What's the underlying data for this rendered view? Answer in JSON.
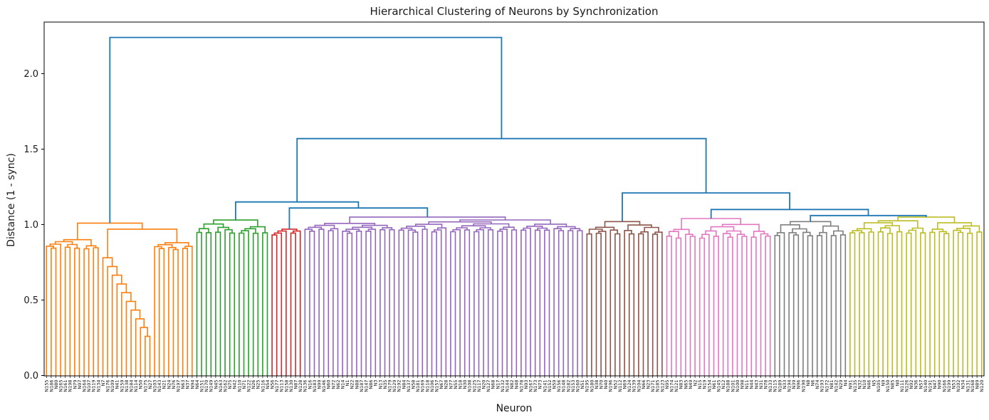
{
  "chart_data": {
    "type": "dendrogram",
    "title": "Hierarchical Clustering of Neurons by Synchronization",
    "xlabel": "Neuron",
    "ylabel": "Distance (1 - sync)",
    "yticks": [
      0.0,
      0.5,
      1.0,
      1.5,
      2.0
    ],
    "ylim": [
      0.0,
      2.34
    ],
    "grid": false,
    "legend": false,
    "n_leaves": 200,
    "leaf_label_prefix": "N",
    "leaf_id_range": [
      0,
      199
    ],
    "leaf_label_rotation": 90,
    "link_color_above_threshold": "#1f77b4",
    "axis_color": "#000000",
    "background": "#ffffff",
    "clusters": [
      {
        "name": "orange",
        "color": "#ff7f0e",
        "leaf_count": 32,
        "top_height": 1.01,
        "min_height": 0.26,
        "shape": "cascade",
        "cascade": {
          "left_block": {
            "leaves": 12,
            "top": 0.9,
            "min": 0.79
          },
          "comb": {
            "leaves": 11,
            "deepest": 0.26,
            "top": 0.78
          },
          "right_block": {
            "leaves": 9,
            "top": 0.88,
            "min": 0.8
          },
          "mid_join": 0.97
        }
      },
      {
        "name": "green",
        "color": "#2ca02c",
        "leaf_count": 16,
        "top_height": 1.03,
        "min_height": 0.88,
        "shape": "bushy"
      },
      {
        "name": "red",
        "color": "#d62728",
        "leaf_count": 7,
        "top_height": 0.97,
        "min_height": 0.93,
        "shape": "bushy"
      },
      {
        "name": "purple",
        "color": "#9467bd",
        "leaf_count": 60,
        "top_height": 1.05,
        "min_height": 0.93,
        "shape": "bushy"
      },
      {
        "name": "brown",
        "color": "#8c564b",
        "leaf_count": 17,
        "top_height": 1.02,
        "min_height": 0.88,
        "shape": "bushy"
      },
      {
        "name": "pink",
        "color": "#e377c2",
        "leaf_count": 23,
        "top_height": 1.04,
        "min_height": 0.83,
        "shape": "bushy"
      },
      {
        "name": "gray",
        "color": "#7f7f7f",
        "leaf_count": 16,
        "top_height": 1.02,
        "min_height": 0.85,
        "shape": "bushy"
      },
      {
        "name": "olive",
        "color": "#bcbd22",
        "leaf_count": 29,
        "top_height": 1.05,
        "min_height": 0.88,
        "shape": "bushy"
      }
    ],
    "blue_links": {
      "height": 2.24,
      "children": [
        {
          "cluster": 0
        },
        {
          "height": 1.57,
          "children": [
            {
              "height": 1.15,
              "children": [
                {
                  "cluster": 1
                },
                {
                  "height": 1.11,
                  "children": [
                    {
                      "cluster": 2
                    },
                    {
                      "cluster": 3
                    }
                  ]
                }
              ]
            },
            {
              "height": 1.21,
              "children": [
                {
                  "cluster": 4
                },
                {
                  "height": 1.1,
                  "children": [
                    {
                      "cluster": 5
                    },
                    {
                      "height": 1.06,
                      "children": [
                        {
                          "cluster": 6
                        },
                        {
                          "cluster": 7
                        }
                      ]
                    }
                  ]
                }
              ]
            }
          ]
        }
      ]
    }
  }
}
